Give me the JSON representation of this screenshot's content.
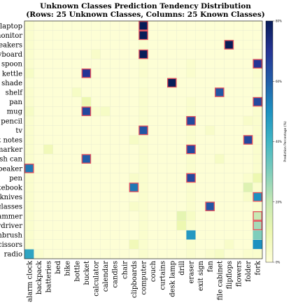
{
  "chart_data": {
    "type": "heatmap",
    "title": "Unknown Classes Prediction Tendency Distribution",
    "subtitle": "(Rows: 25 Unknown Classes, Columns: 25 Known Classes)",
    "rows": [
      "laptop",
      "monitor",
      "sneakers",
      "keyboard",
      "spoon",
      "kettle",
      "lamp shade",
      "shelf",
      "pan",
      "mug",
      "pencil",
      "tv",
      "postit notes",
      "marker",
      "trash can",
      "speaker",
      "pen",
      "notebook",
      "knives",
      "glasses",
      "hammer",
      "screwdriver",
      "toothbrush",
      "scissors",
      "radio"
    ],
    "columns": [
      "alarm clock",
      "backpack",
      "batteries",
      "bed",
      "bike",
      "bottle",
      "bucket",
      "calculator",
      "calendar",
      "candles",
      "chair",
      "clipboards",
      "computer",
      "couch",
      "curtains",
      "desk lamp",
      "drill",
      "eraser",
      "exit sign",
      "fan",
      "file cabinet",
      "flipflops",
      "flowers",
      "folder",
      "fork"
    ],
    "value_unit": "percent",
    "colorbar": {
      "label": "Prediction Percentage (%)",
      "range": [
        0,
        80
      ],
      "ticks": [
        0,
        20,
        40,
        60,
        80
      ],
      "tick_labels": [
        "0%",
        "20%",
        "40%",
        "60%",
        "80%"
      ]
    },
    "colormap": [
      "#ffffd9",
      "#edf8b1",
      "#c7e9b4",
      "#7fcdbb",
      "#41b6c4",
      "#1d91c0",
      "#225ea8",
      "#253494",
      "#081d58"
    ],
    "highlight_color": "#e8505b",
    "cells": [
      [
        3,
        1,
        1,
        1,
        1,
        1,
        1,
        1,
        1,
        1,
        1,
        1,
        90,
        1,
        1,
        1,
        1,
        1,
        1,
        1,
        1,
        1,
        1,
        1,
        1
      ],
      [
        3,
        1,
        1,
        1,
        1,
        1,
        1,
        1,
        1,
        1,
        1,
        1,
        90,
        1,
        1,
        1,
        1,
        1,
        1,
        1,
        1,
        1,
        1,
        1,
        1
      ],
      [
        3,
        1,
        1,
        1,
        1,
        1,
        1,
        1,
        1,
        1,
        1,
        1,
        3,
        1,
        1,
        1,
        1,
        1,
        1,
        1,
        1,
        88,
        1,
        1,
        1
      ],
      [
        3,
        1,
        1,
        1,
        1,
        1,
        1,
        4,
        1,
        1,
        1,
        1,
        90,
        1,
        1,
        1,
        1,
        1,
        1,
        1,
        1,
        1,
        1,
        1,
        1
      ],
      [
        3,
        1,
        1,
        1,
        1,
        1,
        1,
        1,
        1,
        1,
        1,
        1,
        3,
        1,
        1,
        1,
        1,
        3,
        1,
        1,
        1,
        1,
        1,
        1,
        70
      ],
      [
        5,
        1,
        1,
        1,
        1,
        1,
        70,
        1,
        1,
        1,
        1,
        1,
        3,
        1,
        1,
        1,
        1,
        3,
        1,
        1,
        1,
        1,
        1,
        1,
        3
      ],
      [
        2,
        1,
        1,
        1,
        1,
        1,
        1,
        1,
        1,
        1,
        1,
        1,
        2,
        1,
        1,
        80,
        1,
        1,
        1,
        1,
        1,
        1,
        1,
        1,
        2
      ],
      [
        3,
        1,
        1,
        1,
        1,
        5,
        1,
        1,
        1,
        1,
        1,
        1,
        3,
        1,
        1,
        1,
        1,
        1,
        1,
        1,
        62,
        1,
        1,
        1,
        2
      ],
      [
        3,
        1,
        1,
        1,
        1,
        1,
        10,
        1,
        1,
        1,
        1,
        1,
        3,
        1,
        1,
        1,
        1,
        3,
        1,
        1,
        1,
        1,
        1,
        1,
        65
      ],
      [
        5,
        1,
        1,
        1,
        1,
        1,
        65,
        3,
        5,
        1,
        1,
        1,
        3,
        1,
        1,
        1,
        1,
        3,
        1,
        1,
        1,
        1,
        1,
        1,
        3
      ],
      [
        3,
        1,
        1,
        1,
        1,
        1,
        1,
        1,
        1,
        1,
        1,
        1,
        3,
        1,
        1,
        1,
        1,
        65,
        1,
        1,
        1,
        1,
        1,
        4,
        3
      ],
      [
        3,
        1,
        1,
        1,
        1,
        1,
        1,
        1,
        1,
        1,
        1,
        1,
        62,
        1,
        1,
        1,
        1,
        3,
        1,
        4,
        1,
        1,
        1,
        1,
        3
      ],
      [
        3,
        1,
        1,
        1,
        1,
        1,
        1,
        1,
        1,
        1,
        1,
        5,
        3,
        1,
        1,
        1,
        1,
        3,
        1,
        1,
        1,
        1,
        1,
        65,
        3
      ],
      [
        3,
        1,
        8,
        1,
        1,
        1,
        1,
        1,
        1,
        1,
        1,
        1,
        3,
        1,
        1,
        1,
        1,
        65,
        1,
        1,
        1,
        1,
        1,
        1,
        3
      ],
      [
        3,
        1,
        1,
        1,
        1,
        1,
        60,
        1,
        1,
        1,
        1,
        1,
        3,
        1,
        1,
        1,
        1,
        3,
        1,
        1,
        5,
        1,
        1,
        1,
        3
      ],
      [
        55,
        1,
        1,
        1,
        1,
        1,
        1,
        1,
        1,
        1,
        1,
        1,
        3,
        1,
        1,
        1,
        1,
        3,
        1,
        1,
        1,
        1,
        1,
        1,
        3
      ],
      [
        3,
        1,
        1,
        1,
        1,
        1,
        1,
        1,
        1,
        1,
        1,
        4,
        3,
        1,
        1,
        1,
        1,
        65,
        1,
        1,
        1,
        1,
        1,
        3,
        10
      ],
      [
        3,
        1,
        1,
        1,
        1,
        1,
        1,
        1,
        1,
        1,
        1,
        55,
        3,
        1,
        1,
        1,
        1,
        3,
        1,
        1,
        1,
        1,
        1,
        14,
        3
      ],
      [
        3,
        1,
        1,
        1,
        1,
        1,
        1,
        1,
        1,
        1,
        1,
        1,
        3,
        1,
        1,
        1,
        1,
        3,
        1,
        1,
        1,
        1,
        1,
        4,
        50
      ],
      [
        3,
        1,
        1,
        1,
        1,
        1,
        1,
        1,
        1,
        1,
        1,
        4,
        3,
        1,
        1,
        1,
        1,
        3,
        1,
        62,
        1,
        1,
        1,
        1,
        3
      ],
      [
        3,
        1,
        1,
        1,
        1,
        1,
        1,
        1,
        1,
        1,
        1,
        1,
        3,
        1,
        1,
        1,
        12,
        5,
        1,
        1,
        1,
        1,
        1,
        1,
        20
      ],
      [
        3,
        1,
        1,
        1,
        1,
        1,
        1,
        1,
        1,
        1,
        1,
        1,
        3,
        1,
        1,
        1,
        10,
        3,
        1,
        1,
        1,
        1,
        1,
        1,
        25
      ],
      [
        3,
        1,
        1,
        1,
        1,
        1,
        1,
        1,
        1,
        1,
        1,
        1,
        3,
        1,
        1,
        1,
        1,
        48,
        1,
        1,
        1,
        1,
        1,
        1,
        30
      ],
      [
        3,
        1,
        1,
        1,
        1,
        1,
        1,
        1,
        1,
        1,
        1,
        8,
        3,
        1,
        1,
        1,
        1,
        3,
        1,
        1,
        1,
        4,
        1,
        1,
        50
      ],
      [
        45,
        3,
        1,
        1,
        1,
        1,
        1,
        1,
        1,
        1,
        1,
        1,
        3,
        1,
        1,
        1,
        1,
        3,
        1,
        3,
        5,
        1,
        1,
        3,
        3
      ]
    ],
    "highlighted": [
      [
        0,
        12
      ],
      [
        1,
        12
      ],
      [
        2,
        21
      ],
      [
        3,
        12
      ],
      [
        4,
        24
      ],
      [
        5,
        6
      ],
      [
        6,
        15
      ],
      [
        7,
        20
      ],
      [
        8,
        24
      ],
      [
        9,
        6
      ],
      [
        10,
        17
      ],
      [
        11,
        12
      ],
      [
        12,
        23
      ],
      [
        13,
        17
      ],
      [
        14,
        6
      ],
      [
        15,
        0
      ],
      [
        16,
        17
      ],
      [
        17,
        11
      ],
      [
        18,
        24
      ],
      [
        19,
        19
      ],
      [
        20,
        24
      ],
      [
        21,
        24
      ]
    ]
  }
}
